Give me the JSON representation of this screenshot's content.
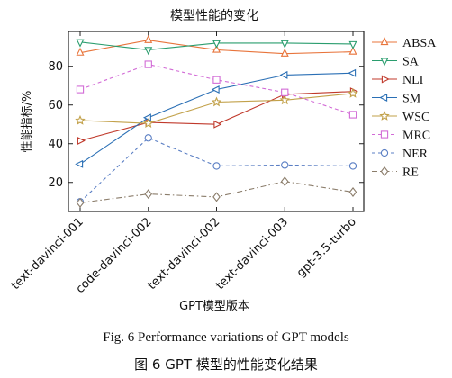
{
  "chart_data": {
    "type": "line",
    "title": "模型性能的变化",
    "xlabel": "GPT模型版本",
    "ylabel": "性能指标/%",
    "categories": [
      "text-davinci-001",
      "code-davinci-002",
      "text-davinci-002",
      "text-davinci-003",
      "gpt-3.5-turbo"
    ],
    "ylim": [
      5,
      98
    ],
    "yticks": [
      20,
      40,
      60,
      80
    ],
    "grid": false,
    "legend_position": "right",
    "series": [
      {
        "name": "ABSA",
        "values": [
          87,
          93.5,
          88.5,
          86.5,
          87.5
        ],
        "color": "#e8743b",
        "marker": "triangle-up",
        "dash": "solid"
      },
      {
        "name": "SA",
        "values": [
          92.5,
          88.5,
          92,
          92,
          91.5
        ],
        "color": "#2a9d6e",
        "marker": "triangle-down",
        "dash": "solid"
      },
      {
        "name": "NLI",
        "values": [
          41.5,
          51,
          50,
          65.5,
          67
        ],
        "color": "#c0392b",
        "marker": "triangle-right",
        "dash": "solid"
      },
      {
        "name": "SM",
        "values": [
          29.5,
          53.5,
          68,
          75.5,
          76.5
        ],
        "color": "#2a6fb5",
        "marker": "triangle-left",
        "dash": "solid"
      },
      {
        "name": "WSC",
        "values": [
          52,
          50.5,
          61.5,
          62.5,
          66
        ],
        "color": "#c2a14a",
        "marker": "star",
        "dash": "solid"
      },
      {
        "name": "MRC",
        "values": [
          68,
          81,
          73,
          66.5,
          55
        ],
        "color": "#d26bd6",
        "marker": "square",
        "dash": "dashed"
      },
      {
        "name": "NER",
        "values": [
          10,
          43,
          28.5,
          29,
          28.5
        ],
        "color": "#5b7fc4",
        "marker": "circle",
        "dash": "dashed"
      },
      {
        "name": "RE",
        "values": [
          9.5,
          14,
          12.5,
          20.5,
          15
        ],
        "color": "#8b7d6b",
        "marker": "diamond",
        "dash": "dashdot"
      }
    ]
  },
  "caption": {
    "en": "Fig. 6    Performance variations of GPT models",
    "zh": "图 6    GPT 模型的性能变化结果"
  }
}
